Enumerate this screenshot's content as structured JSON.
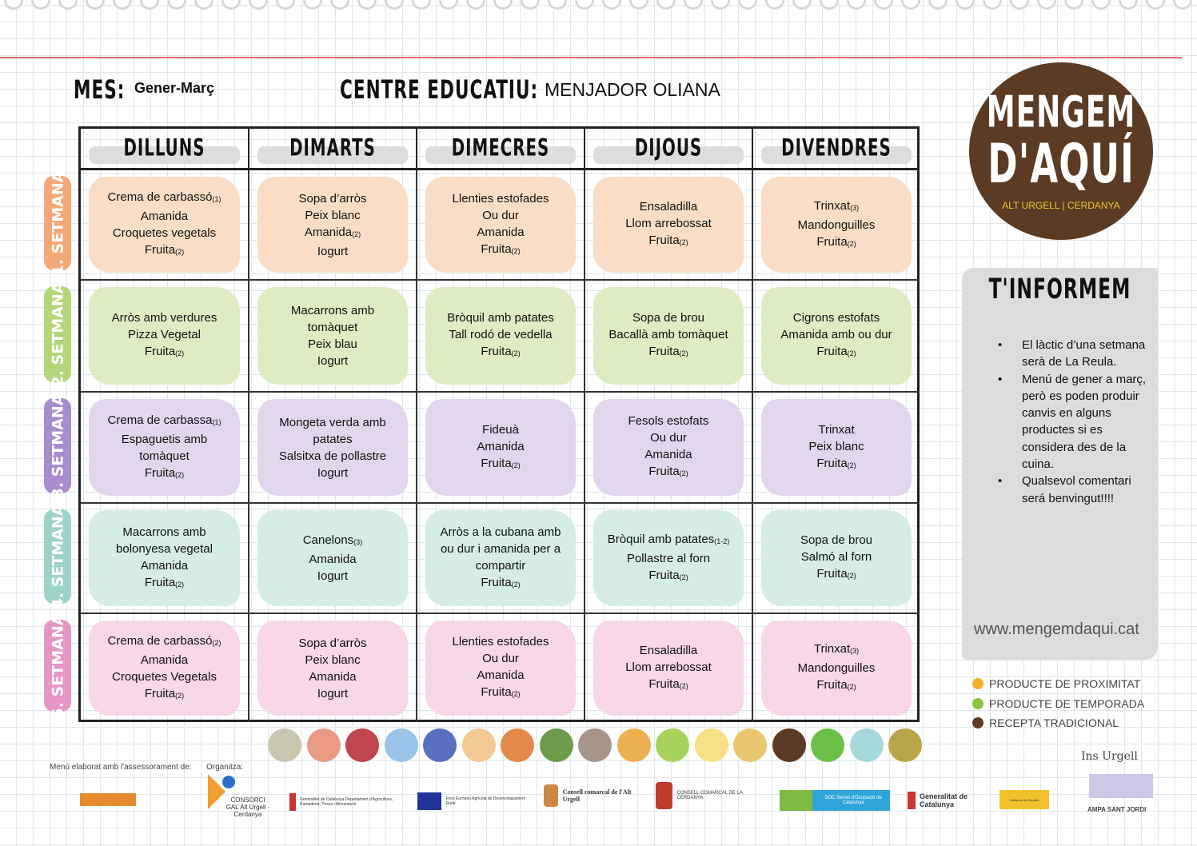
{
  "header": {
    "month_label": "MES:",
    "month": "Gener-Març",
    "centre_label": "CENTRE EDUCATIU:",
    "centre": "MENJADOR OLIANA"
  },
  "days": [
    "DILLUNS",
    "DIMARTS",
    "DIMECRES",
    "DIJOUS",
    "DIVENDRES"
  ],
  "weeks": [
    {
      "label": "1. SETMANA",
      "color": "#f4a878",
      "bg": "#f9ddc6",
      "cells": [
        [
          {
            "t": "Crema de carbassó",
            "n": "(1)"
          },
          {
            "t": "Amanida"
          },
          {
            "t": "Croquetes vegetals"
          },
          {
            "t": "Fruita",
            "n": "(2)"
          }
        ],
        [
          {
            "t": "Sopa d’arròs"
          },
          {
            "t": "Peix  blanc"
          },
          {
            "t": "Amanida",
            "n": "(2)"
          },
          {
            "t": "Iogurt"
          }
        ],
        [
          {
            "t": "Llenties estofades"
          },
          {
            "t": "Ou dur"
          },
          {
            "t": "Amanida"
          },
          {
            "t": "Fruita",
            "n": "(2)"
          }
        ],
        [
          {
            "t": "Ensaladilla"
          },
          {
            "t": "Llom arrebossat"
          },
          {
            "t": "Fruita",
            "n": "(2)"
          }
        ],
        [
          {
            "t": "Trinxat",
            "n": "(3)"
          },
          {
            "t": "Mandonguilles"
          },
          {
            "t": "Fruita",
            "n": "(2)"
          }
        ]
      ]
    },
    {
      "label": "2. SETMANA",
      "color": "#b4d67a",
      "bg": "#deecc4",
      "cells": [
        [
          {
            "t": "Arròs amb verdures"
          },
          {
            "t": "Pizza Vegetal"
          },
          {
            "t": "Fruita",
            "n": "(2)"
          }
        ],
        [
          {
            "t": "Macarrons amb"
          },
          {
            "t": "tomàquet"
          },
          {
            "t": "Peix blau"
          },
          {
            "t": "Iogurt"
          }
        ],
        [
          {
            "t": "Bròquil amb patates"
          },
          {
            "t": "Tall rodó de vedella"
          },
          {
            "t": "Fruita",
            "n": "(2)"
          }
        ],
        [
          {
            "t": "Sopa de brou"
          },
          {
            "t": "Bacallà amb tomàquet"
          },
          {
            "t": "Fruita",
            "n": "(2)"
          }
        ],
        [
          {
            "t": "Cigrons estofats"
          },
          {
            "t": "Amanida amb ou dur"
          },
          {
            "t": "Fruita",
            "n": "(2)"
          }
        ]
      ]
    },
    {
      "label": "3. SETMANA",
      "color": "#a98ccd",
      "bg": "#e2d6ee",
      "cells": [
        [
          {
            "t": "Crema de carbassa",
            "n": "(1)"
          },
          {
            "t": "Espaguetis amb"
          },
          {
            "t": "tomàquet"
          },
          {
            "t": "Fruita",
            "n": "(2)"
          }
        ],
        [
          {
            "t": "Mongeta verda amb"
          },
          {
            "t": "patates"
          },
          {
            "t": "Salsitxa de pollastre"
          },
          {
            "t": "Iogurt"
          }
        ],
        [
          {
            "t": "Fideuà"
          },
          {
            "t": "Amanida"
          },
          {
            "t": "Fruita",
            "n": "(2)"
          }
        ],
        [
          {
            "t": "Fesols estofats"
          },
          {
            "t": "Ou dur"
          },
          {
            "t": "Amanida"
          },
          {
            "t": "Fruita",
            "n": "(2)"
          }
        ],
        [
          {
            "t": "Trinxat"
          },
          {
            "t": "Peix blanc"
          },
          {
            "t": "Fruita",
            "n": "(2)"
          }
        ]
      ]
    },
    {
      "label": "4. SETMANA",
      "color": "#9fd3ca",
      "bg": "#d5ece7",
      "cells": [
        [
          {
            "t": "Macarrons amb"
          },
          {
            "t": "bolonyesa vegetal"
          },
          {
            "t": "Amanida"
          },
          {
            "t": "Fruita",
            "n": "(2)"
          }
        ],
        [
          {
            "t": "Canelons",
            "n": "(3)"
          },
          {
            "t": "Amanida"
          },
          {
            "t": "Iogurt"
          }
        ],
        [
          {
            "t": "Arròs a la cubana amb"
          },
          {
            "t": "ou dur i amanida per a"
          },
          {
            "t": "compartir"
          },
          {
            "t": "Fruita",
            "n": "(2)"
          }
        ],
        [
          {
            "t": "Bròquil amb patates",
            "n": "(1-2)"
          },
          {
            "t": "Pollastre al forn"
          },
          {
            "t": "Fruita",
            "n": "(2)"
          }
        ],
        [
          {
            "t": "Sopa de brou"
          },
          {
            "t": "Salmó al forn"
          },
          {
            "t": "Fruita",
            "n": "(2)"
          }
        ]
      ]
    },
    {
      "label": "5. SETMANA",
      "color": "#e596c4",
      "bg": "#f7d7e8",
      "cells": [
        [
          {
            "t": "Crema de carbassó",
            "n": "(2)"
          },
          {
            "t": "Amanida"
          },
          {
            "t": "Croquetes Vegetals"
          },
          {
            "t": "Fruita",
            "n": "(2)"
          }
        ],
        [
          {
            "t": "Sopa d’arròs"
          },
          {
            "t": "Peix  blanc"
          },
          {
            "t": "Amanida"
          },
          {
            "t": "Iogurt"
          }
        ],
        [
          {
            "t": "Llenties estofades"
          },
          {
            "t": "Ou dur"
          },
          {
            "t": "Amanida"
          },
          {
            "t": "Fruita",
            "n": "(2)"
          }
        ],
        [
          {
            "t": "Ensaladilla"
          },
          {
            "t": "Llom arrebossat"
          },
          {
            "t": "Fruita",
            "n": "(2)"
          }
        ],
        [
          {
            "t": "Trinxat",
            "n": "(3)"
          },
          {
            "t": "Mandonguilles"
          },
          {
            "t": "Fruita",
            "n": "(2)"
          }
        ]
      ]
    }
  ],
  "logo": {
    "line1": "MENGEM",
    "line2": "D'AQUÍ",
    "line3": "ALT URGELL | CERDANYA"
  },
  "info": {
    "title": "T'INFORMEM",
    "bullets": [
      "El làctic d’una setmana serà de La Reula.",
      "Menú de gener a març, però es poden produir canvis en alguns productes si es considera des de la cuina.",
      "Qualsevol comentari será benvingut!!!!"
    ],
    "website": "www.mengemdaqui.cat"
  },
  "legend": [
    {
      "label": "PRODUCTE DE PROXIMITAT",
      "color": "#f0b02a"
    },
    {
      "label": "PRODUCTE DE TEMPORADA",
      "color": "#8cc43f"
    },
    {
      "label": "RECEPTA TRADICIONAL",
      "color": "#5b3b23"
    }
  ],
  "food_icons": [
    {
      "name": "cereals-icon",
      "color": "#c9c7b0"
    },
    {
      "name": "chicken-leg-icon",
      "color": "#e89a85"
    },
    {
      "name": "meat-icon",
      "color": "#c0454d"
    },
    {
      "name": "fish-icon",
      "color": "#9cc4e8"
    },
    {
      "name": "bread-icon",
      "color": "#5b6fc0"
    },
    {
      "name": "pasta-icon",
      "color": "#f3c994"
    },
    {
      "name": "wheat-icon",
      "color": "#e38a4a"
    },
    {
      "name": "vegetables-icon",
      "color": "#6d9b4c"
    },
    {
      "name": "legumes-icon",
      "color": "#a8958a"
    },
    {
      "name": "poultry-icon",
      "color": "#ecb050"
    },
    {
      "name": "apple-icon",
      "color": "#a8d35a"
    },
    {
      "name": "dairy-icon",
      "color": "#f6df84"
    },
    {
      "name": "potato-icon",
      "color": "#e8c770"
    },
    {
      "name": "nuts-icon",
      "color": "#5b3b23"
    },
    {
      "name": "eco-icon",
      "color": "#6cc04a"
    },
    {
      "name": "water-icon",
      "color": "#a6d8dc"
    },
    {
      "name": "oil-icon",
      "color": "#b9a64a"
    }
  ],
  "footer": {
    "advice_label": "Menú elaborat amb l'assessorament de:",
    "organizer_label": "Organitza:",
    "sponsors": [
      "CONSORCI GAL Alt Urgell · Cerdanya",
      "Generalitat de Catalunya Departament d'Agricultura, Ramaderia, Pesca i Alimentació",
      "Fons Europeu Agrícola de Desenvolupament Rural",
      "Consell comarcal de l'Alt Urgell",
      "CONSELL COMARCAL DE LA CERDANYA",
      "SOC Servei d'Ocupació de Catalunya",
      "Generalitat de Catalunya",
      "Gobierno de España",
      "AMPA SANT JORDI"
    ],
    "school_sign": "Ins Urgell"
  }
}
